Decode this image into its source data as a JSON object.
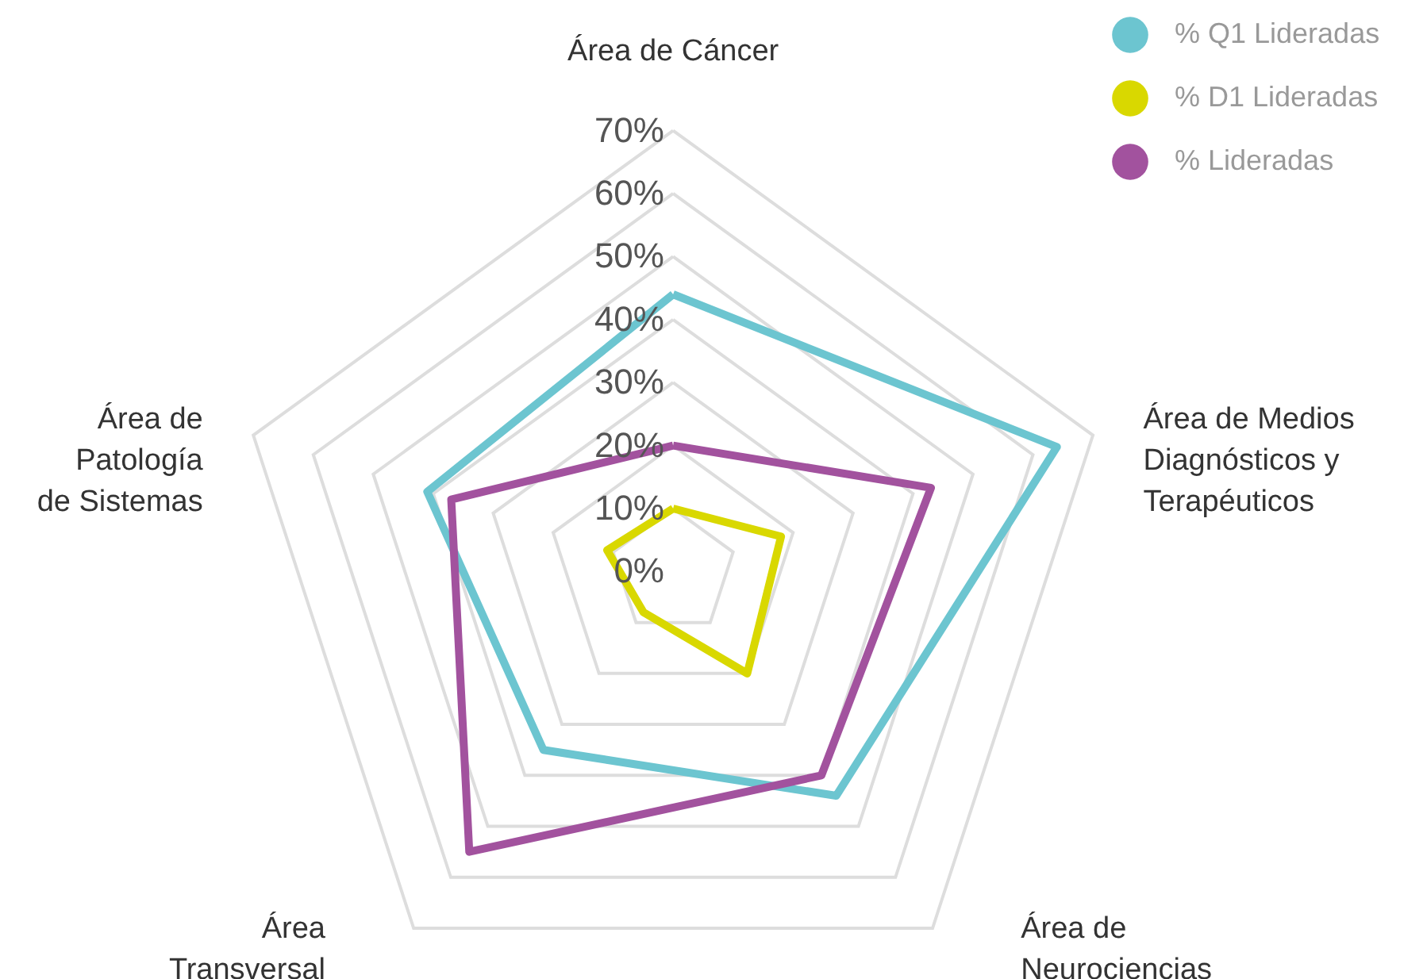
{
  "chart_data": {
    "type": "radar",
    "categories": [
      "Área de Cáncer",
      "Área de Medios\nDiagnósticos y\nTerapéuticos",
      "Área de\nNeurociencias",
      "Área\nTransversal",
      "Área de\nPatología\nde Sistemas"
    ],
    "series": [
      {
        "name": "% Q1 Lideradas",
        "color": "#6cc5d0",
        "values": [
          44,
          64,
          44,
          35,
          41
        ]
      },
      {
        "name": "% D1 Lideradas",
        "color": "#d9d800",
        "values": [
          10,
          18,
          20,
          8,
          11
        ]
      },
      {
        "name": "% Lideradas",
        "color": "#a2529e",
        "values": [
          20,
          43,
          40,
          55,
          37
        ]
      }
    ],
    "ylim": [
      0,
      70
    ],
    "yticks": [
      {
        "value": 0,
        "label": "0%"
      },
      {
        "value": 10,
        "label": "10%"
      },
      {
        "value": 20,
        "label": "20%"
      },
      {
        "value": 30,
        "label": "30%"
      },
      {
        "value": 40,
        "label": "40%"
      },
      {
        "value": 50,
        "label": "50%"
      },
      {
        "value": 60,
        "label": "60%"
      },
      {
        "value": 70,
        "label": "70%"
      }
    ],
    "legend": "top right",
    "grid": true
  }
}
